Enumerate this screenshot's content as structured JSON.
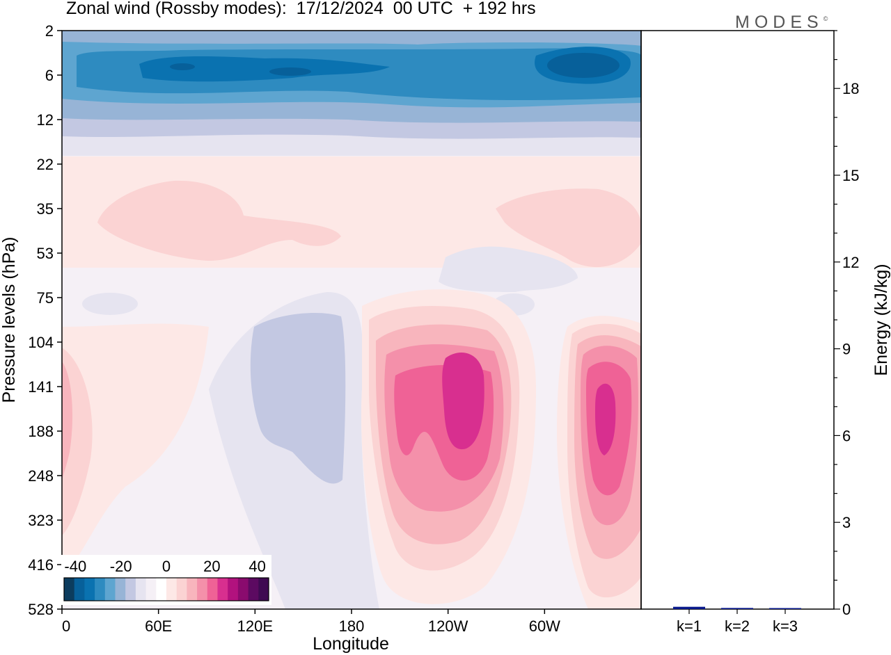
{
  "title": "Zonal wind (Rossby modes):  17/12/2024  00 UTC  + 192 hrs",
  "brand": "MODES",
  "brand_mark": "©",
  "chart_data": [
    {
      "type": "heatmap",
      "title": "Zonal wind (Rossby modes):  17/12/2024  00 UTC  + 192 hrs",
      "xlabel": "Longitude",
      "ylabel": "Pressure levels (hPa)",
      "x_ticks": [
        "0",
        "60E",
        "120E",
        "180",
        "120W",
        "60W"
      ],
      "y_ticks": [
        "2",
        "6",
        "12",
        "22",
        "35",
        "53",
        "75",
        "104",
        "141",
        "188",
        "248",
        "323",
        "416",
        "528"
      ],
      "y_scale": "log",
      "colorbar": {
        "ticks": [
          "-40",
          "-20",
          "0",
          "20",
          "40"
        ],
        "range": [
          -45,
          45
        ],
        "colors": [
          "#0c3c5e",
          "#07609a",
          "#0a72b0",
          "#2e8bc0",
          "#5ea5d0",
          "#97b4d6",
          "#c3c8e2",
          "#e6e4f0",
          "#f5f0f6",
          "#ffffff",
          "#fde8e6",
          "#fbd3d3",
          "#f8b5bd",
          "#f490aa",
          "#ef6296",
          "#d82f8f",
          "#b2127e",
          "#8a0b6e",
          "#5c0a61",
          "#3f0a52"
        ]
      }
    },
    {
      "type": "bar",
      "categories": [
        "k=1",
        "k=2",
        "k=3"
      ],
      "values": [
        0.08,
        0.04,
        0.03
      ],
      "ylabel": "Energy (kJ/kg)",
      "y_ticks": [
        "0",
        "3",
        "6",
        "9",
        "12",
        "15",
        "18"
      ],
      "ylim": [
        0,
        20
      ],
      "bar_color": "#0a1a8c"
    }
  ]
}
